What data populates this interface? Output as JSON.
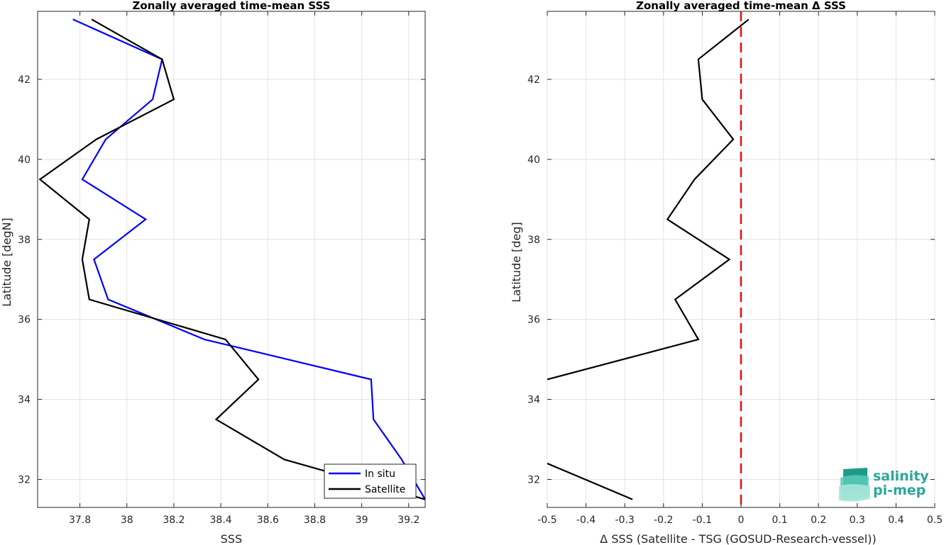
{
  "chart_data": [
    {
      "type": "line",
      "title": "Zonally averaged time-mean SSS",
      "xlabel": "SSS",
      "ylabel": "Latitude [degN]",
      "xlim": [
        37.62,
        39.27
      ],
      "ylim": [
        31.3,
        43.7
      ],
      "xticks": [
        "37.8",
        "38",
        "38.2",
        "38.4",
        "38.6",
        "38.8",
        "39",
        "39.2"
      ],
      "xtick_values": [
        37.8,
        38.0,
        38.2,
        38.4,
        38.6,
        38.8,
        39.0,
        39.2
      ],
      "yticks": [
        "32",
        "34",
        "36",
        "38",
        "40",
        "42"
      ],
      "ytick_values": [
        32,
        34,
        36,
        38,
        40,
        42
      ],
      "grid": true,
      "legend": "bottom-right",
      "series": [
        {
          "name": "In situ",
          "color": "#0000ff",
          "y": [
            43.5,
            42.5,
            41.5,
            40.5,
            39.5,
            38.5,
            37.5,
            36.5,
            35.5,
            34.5,
            33.5,
            32.5,
            31.5
          ],
          "x": [
            37.77,
            38.15,
            38.11,
            37.91,
            37.81,
            38.08,
            37.86,
            37.92,
            38.33,
            39.04,
            39.05,
            39.17,
            39.27
          ]
        },
        {
          "name": "Satellite",
          "color": "#000000",
          "y": [
            43.5,
            42.5,
            41.5,
            40.5,
            39.5,
            38.5,
            37.5,
            36.5,
            35.5,
            34.5,
            33.5,
            32.5,
            31.5
          ],
          "x": [
            37.85,
            38.15,
            38.2,
            37.87,
            37.63,
            37.84,
            37.81,
            37.84,
            38.42,
            38.56,
            38.38,
            38.67,
            39.27
          ]
        }
      ]
    },
    {
      "type": "line",
      "title": "Zonally averaged time-mean Δ SSS",
      "xlabel": "Δ SSS (Satellite - TSG (GOSUD-Research-vessel))",
      "ylabel": "Latitude [deg]",
      "xlim": [
        -0.5,
        0.5
      ],
      "ylim": [
        31.3,
        43.7
      ],
      "xticks": [
        "-0.5",
        "-0.4",
        "-0.3",
        "-0.2",
        "-0.1",
        "0",
        "0.1",
        "0.2",
        "0.3",
        "0.4",
        "0.5"
      ],
      "xtick_values": [
        -0.5,
        -0.4,
        -0.3,
        -0.2,
        -0.1,
        0,
        0.1,
        0.2,
        0.3,
        0.4,
        0.5
      ],
      "yticks": [
        "32",
        "34",
        "36",
        "38",
        "40",
        "42"
      ],
      "ytick_values": [
        32,
        34,
        36,
        38,
        40,
        42
      ],
      "grid": true,
      "reference_line": {
        "x": 0,
        "color": "#e01010",
        "style": "dashed"
      },
      "series": [
        {
          "color": "#000000",
          "segments": [
            {
              "y": [
                43.5,
                42.5,
                41.5,
                40.5,
                39.5,
                38.5,
                37.5,
                36.5,
                35.5,
                34.5
              ],
              "x": [
                0.02,
                -0.11,
                -0.1,
                -0.02,
                -0.12,
                -0.19,
                -0.03,
                -0.17,
                -0.11,
                -0.5
              ]
            },
            {
              "y": [
                32.4,
                31.5
              ],
              "x": [
                -0.5,
                -0.28
              ]
            }
          ]
        }
      ]
    }
  ],
  "logo": {
    "line1": "salinity",
    "line2": "pi-mep",
    "color": "#2aa89a"
  }
}
